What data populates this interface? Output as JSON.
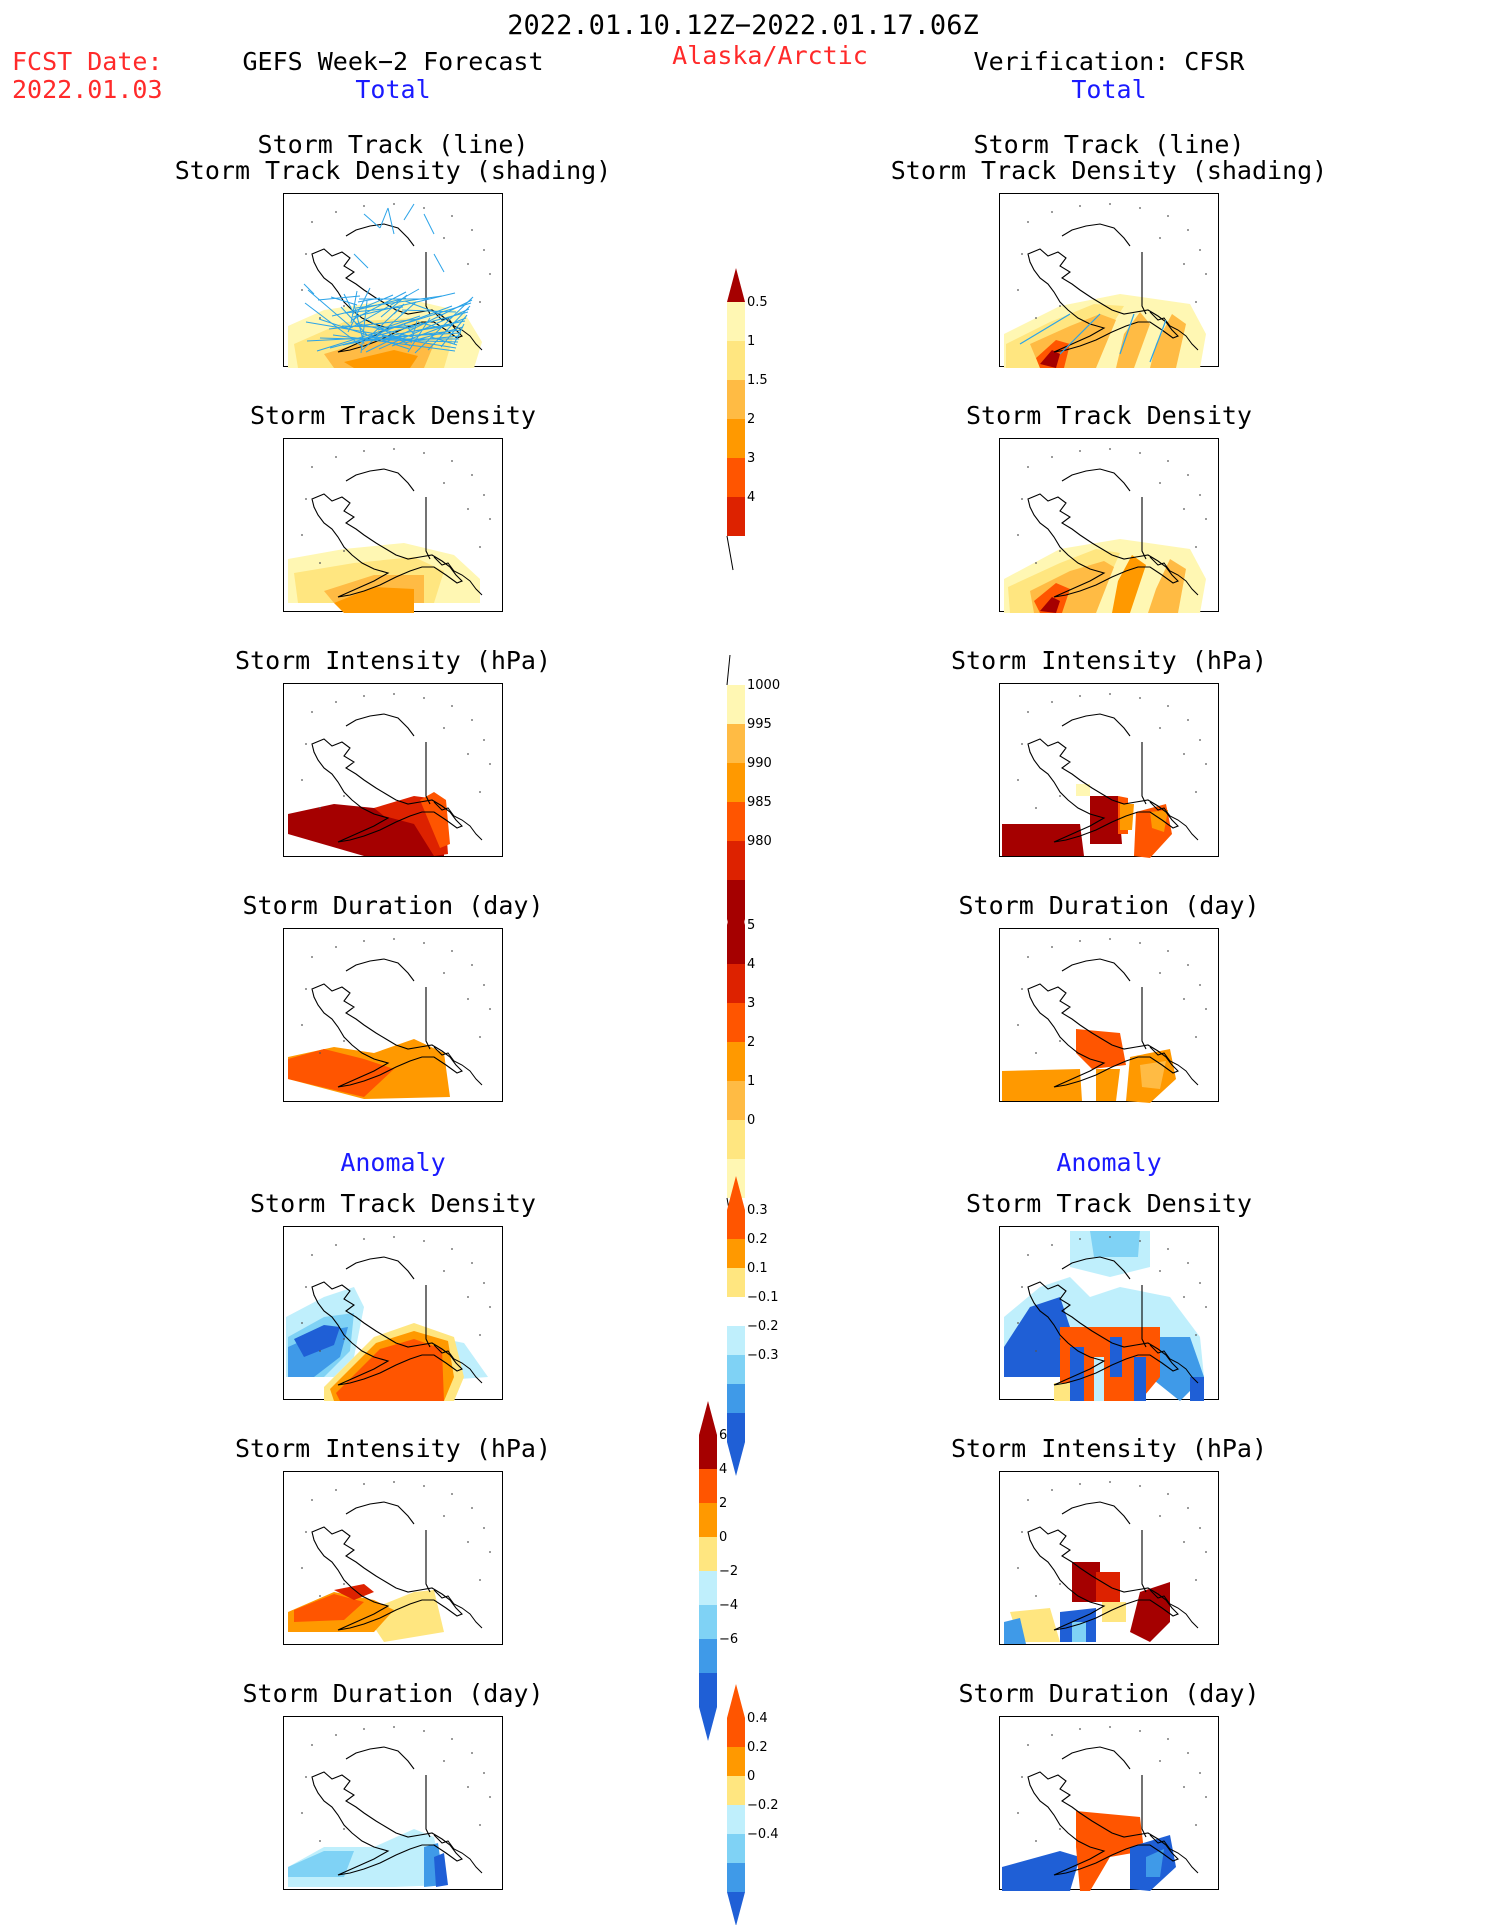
{
  "header": {
    "period": "2022.01.10.12Z−2022.01.17.06Z",
    "fcst_label": "FCST Date:",
    "fcst_date": "2022.01.03",
    "model_title": "GEFS Week−2 Forecast",
    "region": "Alaska/Arctic",
    "verif_title": "Verification: CFSR",
    "left_section": "Total",
    "right_section": "Total",
    "anomaly_left": "Anomaly",
    "anomaly_right": "Anomaly"
  },
  "panels": {
    "track_title_1": "Storm Track (line)",
    "track_title_2": "Storm Track Density (shading)",
    "density": "Storm Track Density",
    "intensity": "Storm Intensity (hPa)",
    "duration": "Storm Duration (day)"
  },
  "colors": {
    "deep_red": "#a50000",
    "red": "#dd2200",
    "orange_red": "#ff5500",
    "orange": "#ff9900",
    "light_orange": "#ffbb44",
    "yellow": "#ffe680",
    "pale_yellow": "#fff7b3",
    "pale_blue": "#bfeffc",
    "light_blue": "#7fd2f5",
    "mid_blue": "#3f9ae8",
    "blue": "#1f5fd6",
    "track_line": "#2ba3e8"
  },
  "chart_data": [
    {
      "type": "heatmap",
      "name": "density_total",
      "levels": [
        "0.5",
        "1",
        "1.5",
        "2",
        "3",
        "4"
      ],
      "colors": [
        "#fff7b3",
        "#ffe680",
        "#ffbb44",
        "#ff9900",
        "#ff5500",
        "#dd2200"
      ]
    },
    {
      "type": "heatmap",
      "name": "intensity_total",
      "levels": [
        "1000",
        "995",
        "990",
        "985",
        "980"
      ],
      "colors": [
        "#fff7b3",
        "#ffbb44",
        "#ff9900",
        "#ff5500",
        "#dd2200",
        "#a50000"
      ]
    },
    {
      "type": "heatmap",
      "name": "duration_total",
      "levels": [
        "5",
        "4",
        "3",
        "2",
        "1",
        "0"
      ],
      "colors": [
        "#a50000",
        "#dd2200",
        "#ff5500",
        "#ff9900",
        "#ffbb44",
        "#ffe680",
        "#fff7b3"
      ]
    },
    {
      "type": "heatmap",
      "name": "density_anom",
      "levels": [
        "0.3",
        "0.2",
        "0.1",
        "−0.1",
        "−0.2",
        "−0.3"
      ],
      "colors": [
        "#ff5500",
        "#ff9900",
        "#ffe680",
        "#ffffff",
        "#bfeffc",
        "#7fd2f5",
        "#3f9ae8",
        "#1f5fd6"
      ]
    },
    {
      "type": "heatmap",
      "name": "intensity_anom",
      "levels": [
        "6",
        "4",
        "2",
        "0",
        "−2",
        "−4",
        "−6"
      ],
      "colors": [
        "#a50000",
        "#ff5500",
        "#ff9900",
        "#ffe680",
        "#bfeffc",
        "#7fd2f5",
        "#3f9ae8",
        "#1f5fd6"
      ]
    },
    {
      "type": "heatmap",
      "name": "duration_anom",
      "levels": [
        "0.4",
        "0.2",
        "0",
        "−0.2",
        "−0.4"
      ],
      "colors": [
        "#ff5500",
        "#ff9900",
        "#ffe680",
        "#bfeffc",
        "#7fd2f5",
        "#3f9ae8"
      ]
    }
  ]
}
